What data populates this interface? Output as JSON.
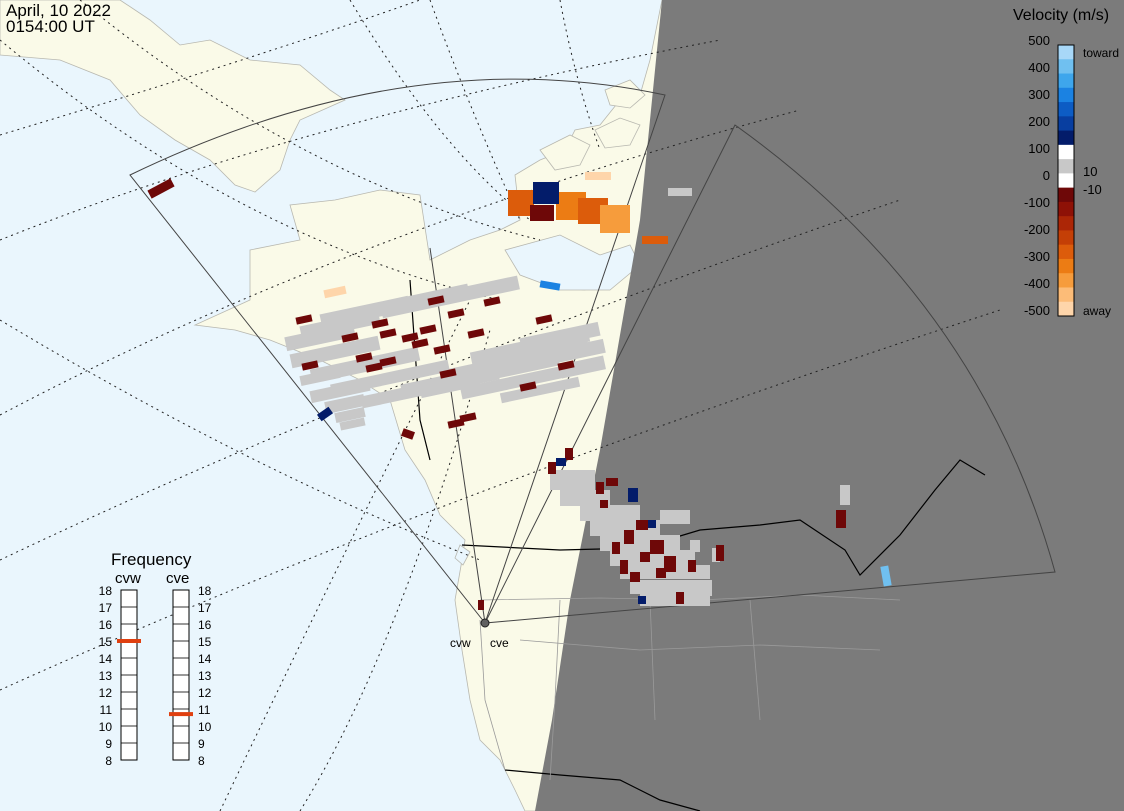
{
  "header": {
    "date": "April, 10 2022",
    "time": "0154:00 UT"
  },
  "colors": {
    "ocean": "#eaf6fd",
    "land": "#fafae8",
    "night": "#7b7b7b",
    "ground_scatter": "#c8c8c8",
    "radar_marker": "#606060",
    "frequency_marker": "#e04010"
  },
  "velocity_scale": {
    "title": "Velocity (m/s)",
    "tick_labels": [
      "500",
      "400",
      "300",
      "200",
      "100",
      "10",
      "0",
      "-10",
      "-100",
      "-200",
      "-300",
      "-400",
      "-500"
    ],
    "toward_label": "toward",
    "away_label": "away",
    "colors_top_to_bottom": [
      "#a8d8f8",
      "#70c0f0",
      "#3ea6ec",
      "#1b82e2",
      "#0d5cc4",
      "#083ea0",
      "#031c6a",
      "#ffffff",
      "#c8c8c8",
      "#ffffff",
      "#6e0808",
      "#8e1106",
      "#ac2606",
      "#c43f06",
      "#dc5c0b",
      "#ec7c14",
      "#f69c3c",
      "#fcbc78",
      "#fed5aa"
    ]
  },
  "radars": [
    {
      "code": "cvw",
      "name_label": "cvw",
      "frequency_mhz": 15
    },
    {
      "code": "cve",
      "name_label": "cve",
      "frequency_mhz": 10.7
    }
  ],
  "frequency_panel": {
    "title": "Frequency",
    "tick_labels": [
      "18",
      "17",
      "16",
      "15",
      "14",
      "13",
      "12",
      "11",
      "10",
      "9",
      "8"
    ]
  }
}
